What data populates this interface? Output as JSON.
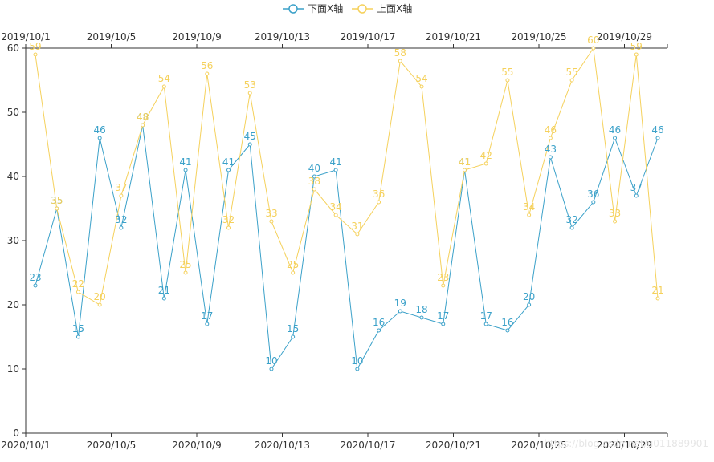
{
  "chart_data": {
    "type": "line",
    "xlim": [
      0,
      30
    ],
    "ylim": [
      0,
      60
    ],
    "y_ticks": [
      0,
      10,
      20,
      30,
      40,
      50,
      60
    ],
    "bottom_axis": {
      "ticks": [
        {
          "i": 0,
          "label": "2020/10/1"
        },
        {
          "i": 4,
          "label": "2020/10/5"
        },
        {
          "i": 8,
          "label": "2020/10/9"
        },
        {
          "i": 12,
          "label": "2020/10/13"
        },
        {
          "i": 16,
          "label": "2020/10/17"
        },
        {
          "i": 20,
          "label": "2020/10/21"
        },
        {
          "i": 24,
          "label": "2020/10/25"
        },
        {
          "i": 28,
          "label": "2020/10/29"
        }
      ]
    },
    "top_axis": {
      "ticks": [
        {
          "i": 0,
          "label": "2019/10/1"
        },
        {
          "i": 4,
          "label": "2019/10/5"
        },
        {
          "i": 8,
          "label": "2019/10/9"
        },
        {
          "i": 12,
          "label": "2019/10/13"
        },
        {
          "i": 16,
          "label": "2019/10/17"
        },
        {
          "i": 20,
          "label": "2019/10/21"
        },
        {
          "i": 24,
          "label": "2019/10/25"
        },
        {
          "i": 28,
          "label": "2019/10/29"
        }
      ]
    },
    "series": [
      {
        "name": "下面X轴",
        "color": "#3ba1c9",
        "axis": "bottom",
        "values": [
          23,
          35,
          15,
          46,
          32,
          48,
          21,
          41,
          17,
          41,
          45,
          10,
          15,
          40,
          41,
          10,
          16,
          19,
          18,
          17,
          41,
          17,
          16,
          20,
          43,
          32,
          36,
          46,
          37,
          46
        ]
      },
      {
        "name": "上面X轴",
        "color": "#f5d15c",
        "axis": "top",
        "values": [
          59,
          35,
          22,
          20,
          37,
          48,
          54,
          25,
          56,
          32,
          53,
          33,
          25,
          38,
          34,
          31,
          36,
          58,
          54,
          23,
          41,
          42,
          55,
          34,
          46,
          55,
          60,
          33,
          59,
          21
        ]
      }
    ],
    "legend_position": "top-center",
    "grid": false
  },
  "watermark": "https://blog.csdn.net/u011889901"
}
